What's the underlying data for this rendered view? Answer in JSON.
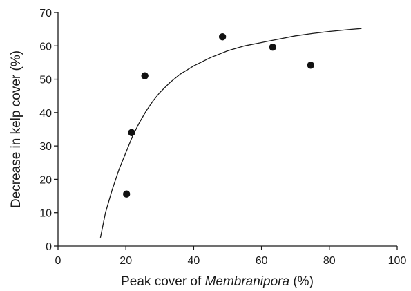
{
  "chart_data": {
    "type": "scatter",
    "title": "",
    "xlabel_prefix": "Peak cover of ",
    "xlabel_italic": "Membranipora",
    "xlabel_suffix": " (%)",
    "ylabel": "Decrease in kelp cover (%)",
    "xlim": [
      0,
      100
    ],
    "ylim": [
      0,
      70
    ],
    "xticks": [
      0,
      20,
      40,
      60,
      80,
      100
    ],
    "yticks": [
      0,
      10,
      20,
      30,
      40,
      50,
      60,
      70
    ],
    "grid": false,
    "points": [
      {
        "x": 20.2,
        "y": 15.6
      },
      {
        "x": 21.7,
        "y": 34.0
      },
      {
        "x": 25.6,
        "y": 51.0
      },
      {
        "x": 48.5,
        "y": 62.7
      },
      {
        "x": 63.3,
        "y": 59.6
      },
      {
        "x": 74.5,
        "y": 54.2
      }
    ],
    "fit_curve": [
      {
        "x": 12.5,
        "y": 2.5
      },
      {
        "x": 14,
        "y": 10
      },
      {
        "x": 16,
        "y": 17
      },
      {
        "x": 18,
        "y": 23
      },
      {
        "x": 20,
        "y": 28
      },
      {
        "x": 22,
        "y": 33
      },
      {
        "x": 24,
        "y": 37
      },
      {
        "x": 26,
        "y": 40.5
      },
      {
        "x": 28,
        "y": 43.5
      },
      {
        "x": 30,
        "y": 46
      },
      {
        "x": 33,
        "y": 49
      },
      {
        "x": 36,
        "y": 51.5
      },
      {
        "x": 40,
        "y": 54
      },
      {
        "x": 45,
        "y": 56.5
      },
      {
        "x": 50,
        "y": 58.5
      },
      {
        "x": 55,
        "y": 60
      },
      {
        "x": 60,
        "y": 61
      },
      {
        "x": 65,
        "y": 62
      },
      {
        "x": 70,
        "y": 63
      },
      {
        "x": 75,
        "y": 63.7
      },
      {
        "x": 80,
        "y": 64.3
      },
      {
        "x": 85,
        "y": 64.8
      },
      {
        "x": 89.5,
        "y": 65.2
      }
    ]
  }
}
